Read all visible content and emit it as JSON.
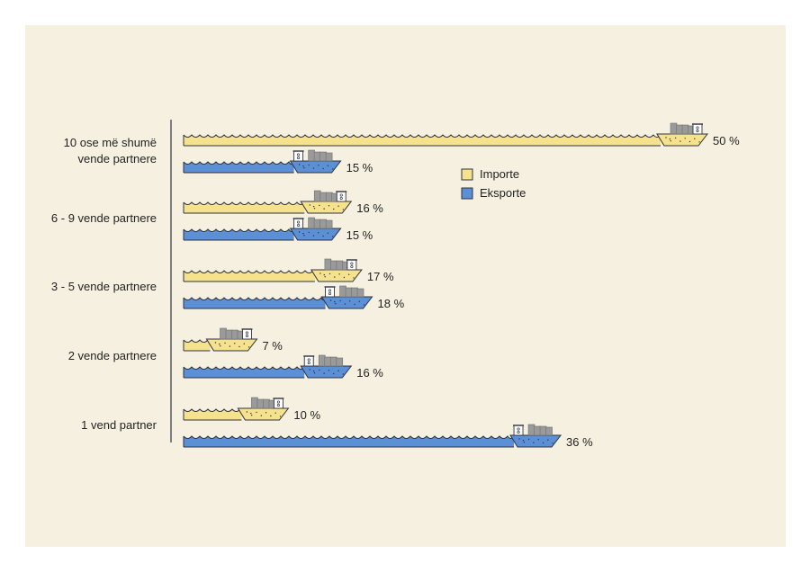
{
  "chart_data": {
    "type": "bar",
    "orientation": "horizontal",
    "categories": [
      [
        "10 ose më shumë",
        "vende partnere"
      ],
      [
        "6 - 9 vende partnere"
      ],
      [
        "3 - 5 vende partnere"
      ],
      [
        "2 vende partnere"
      ],
      [
        "1 vend partner"
      ]
    ],
    "series": [
      {
        "name": "Importe",
        "values": [
          50,
          16,
          17,
          7,
          10
        ],
        "labels": [
          "50 %",
          "16 %",
          "17 %",
          "7 %",
          "10 %"
        ]
      },
      {
        "name": "Eksporte",
        "values": [
          15,
          15,
          18,
          16,
          36
        ],
        "labels": [
          "15 %",
          "15 %",
          "18 %",
          "16 %",
          "36 %"
        ]
      }
    ],
    "unit": "%",
    "legend_position": "right",
    "grid": false
  },
  "colors": {
    "import": "#f6e28d",
    "export": "#5b8fd6",
    "stroke": "#2e3340",
    "background": "#f6f0e1",
    "container": "#9a9a9a"
  },
  "icons": [
    "wave-icon",
    "cargo-ship-icon",
    "container-icon"
  ]
}
